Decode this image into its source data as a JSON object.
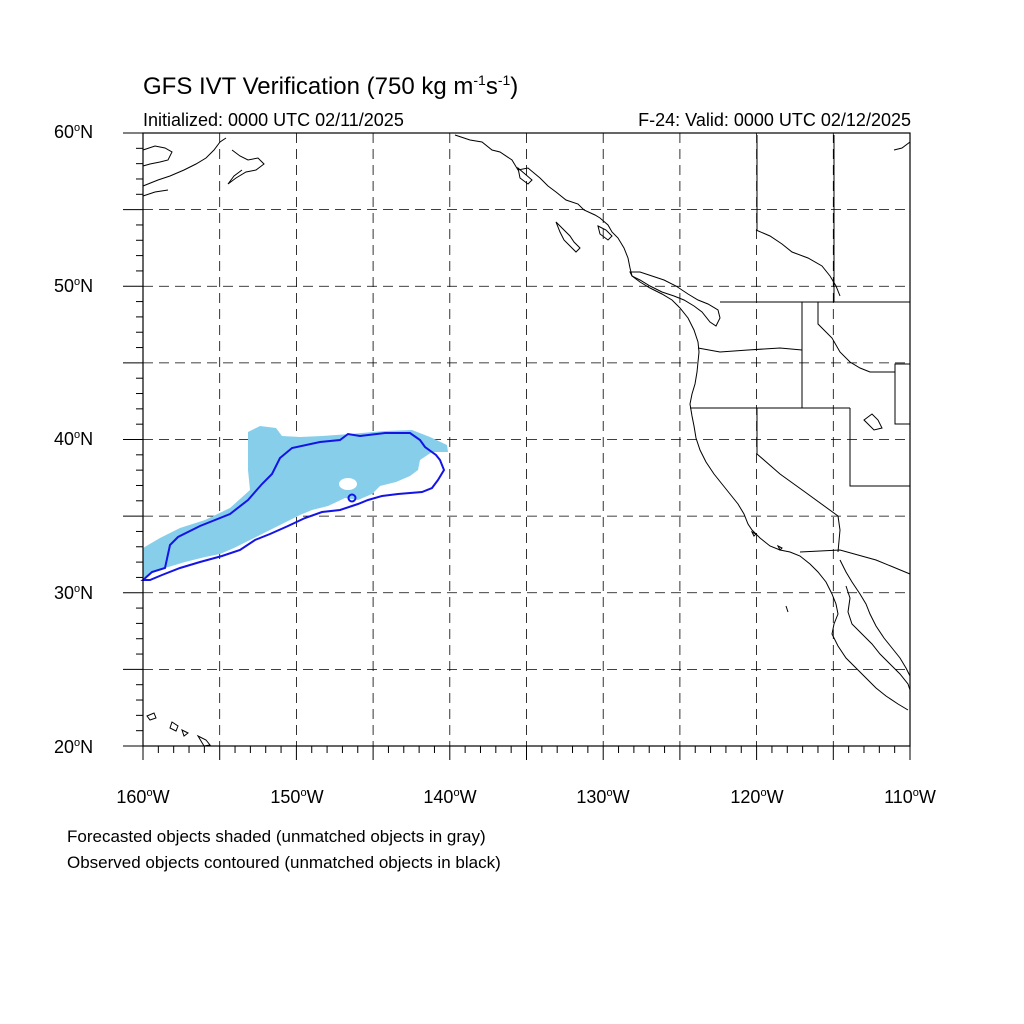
{
  "title": {
    "prefix": "GFS IVT Verification (750 kg m",
    "sup1": "-1",
    "mid": "s",
    "sup2": "-1",
    "suffix": ")"
  },
  "subtitle_left": "Initialized: 0000 UTC 02/11/2025",
  "subtitle_right": "F-24: Valid: 0000 UTC 02/12/2025",
  "lat_labels": [
    {
      "num": "60",
      "deg": "o",
      "hem": "N"
    },
    {
      "num": "50",
      "deg": "o",
      "hem": "N"
    },
    {
      "num": "40",
      "deg": "o",
      "hem": "N"
    },
    {
      "num": "30",
      "deg": "o",
      "hem": "N"
    },
    {
      "num": "20",
      "deg": "o",
      "hem": "N"
    }
  ],
  "lon_labels": [
    {
      "num": "160",
      "deg": "o",
      "hem": "W"
    },
    {
      "num": "150",
      "deg": "o",
      "hem": "W"
    },
    {
      "num": "140",
      "deg": "o",
      "hem": "W"
    },
    {
      "num": "130",
      "deg": "o",
      "hem": "W"
    },
    {
      "num": "120",
      "deg": "o",
      "hem": "W"
    },
    {
      "num": "110",
      "deg": "o",
      "hem": "W"
    }
  ],
  "footnote_1": "Forecasted objects shaded (unmatched objects in gray)",
  "footnote_2": "Observed objects contoured (unmatched objects in black)",
  "map": {
    "lon_range": [
      -160,
      -110
    ],
    "lat_range": [
      20,
      60
    ],
    "grid_interval_deg": 5,
    "grid_style": "dashed",
    "colors": {
      "forecast_fill": "#87ceeb",
      "observed_contour": "#1414e6",
      "coastline": "#000000"
    }
  }
}
